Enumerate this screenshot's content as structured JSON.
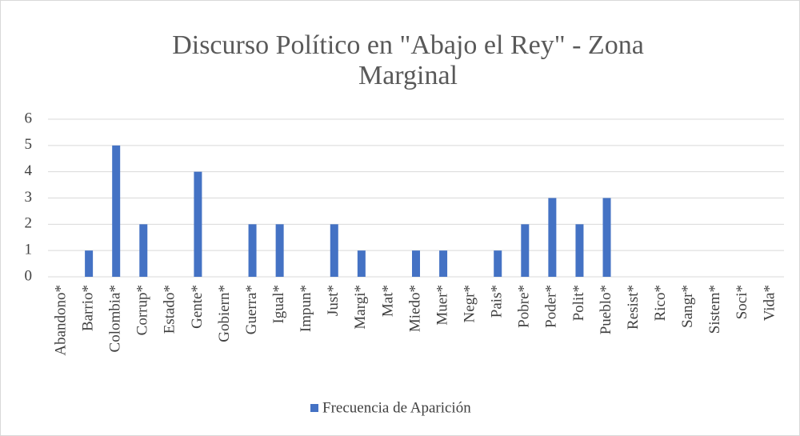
{
  "chart_data": {
    "type": "bar",
    "title": "Discurso Político en \"Abajo el Rey\" - Zona Marginal",
    "categories": [
      "Abandono*",
      "Barrio*",
      "Colombia*",
      "Corrup*",
      "Estado*",
      "Gente*",
      "Gobiern*",
      "Guerra*",
      "Igual*",
      "Impun*",
      "Just*",
      "Margi*",
      "Mat*",
      "Miedo*",
      "Muer*",
      "Negr*",
      "Pais*",
      "Pobre*",
      "Poder*",
      "Polit*",
      "Pueblo*",
      "Resist*",
      "Rico*",
      "Sangr*",
      "Sistem*",
      "Soci*",
      "Vida*"
    ],
    "series": [
      {
        "name": "Frecuencia de Aparición",
        "color": "#4472c4",
        "values": [
          0,
          1,
          5,
          2,
          0,
          4,
          0,
          2,
          2,
          0,
          2,
          1,
          0,
          1,
          1,
          0,
          1,
          2,
          3,
          2,
          3,
          0,
          0,
          0,
          0,
          0,
          0
        ]
      }
    ],
    "ylim": [
      0,
      6
    ],
    "yticks": [
      0,
      1,
      2,
      3,
      4,
      5,
      6
    ],
    "grid": true,
    "legend": "bottom"
  }
}
